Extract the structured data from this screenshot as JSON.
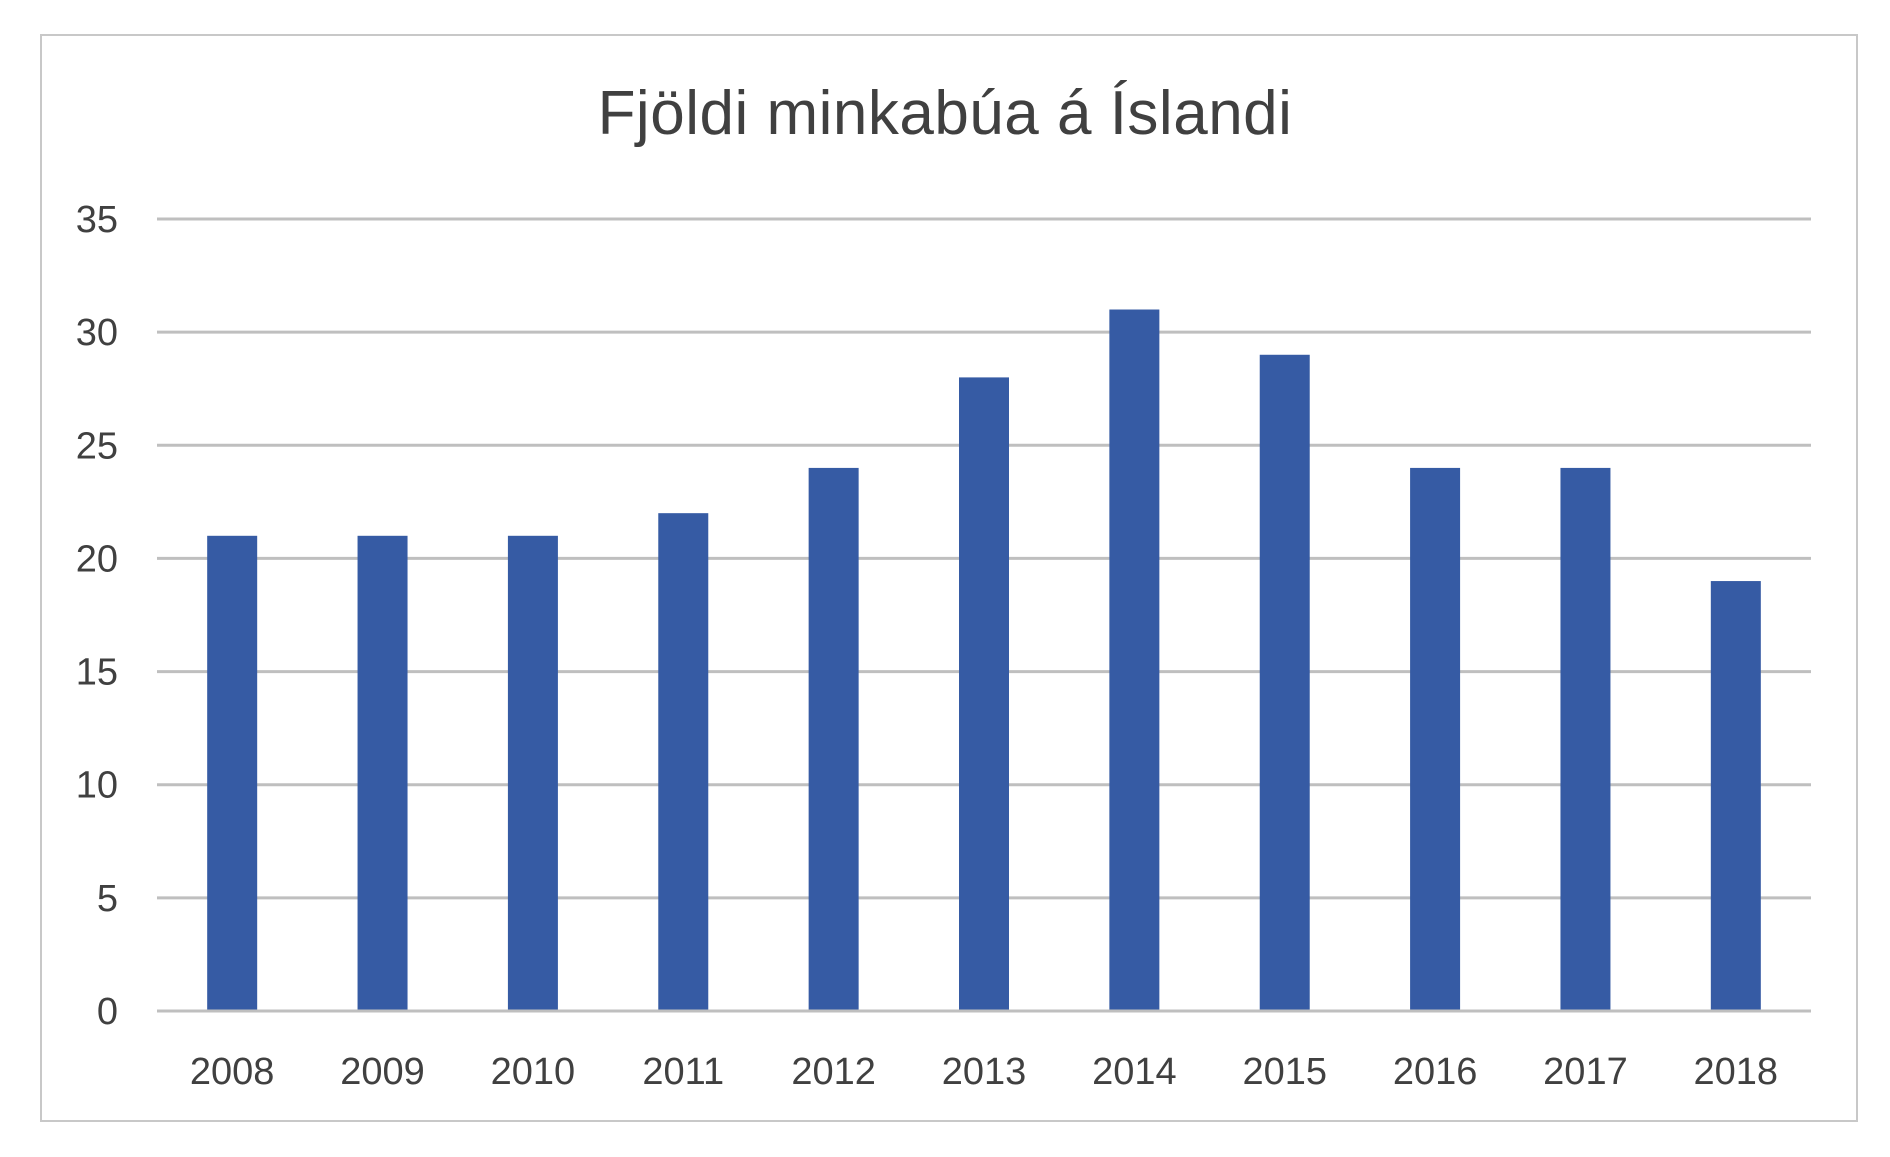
{
  "chart_data": {
    "type": "bar",
    "title": "Fjöldi minkabúa á Íslandi",
    "categories": [
      "2008",
      "2009",
      "2010",
      "2011",
      "2012",
      "2013",
      "2014",
      "2015",
      "2016",
      "2017",
      "2018"
    ],
    "values": [
      21,
      21,
      21,
      22,
      24,
      28,
      31,
      29,
      24,
      24,
      19
    ],
    "ylim": [
      0,
      35
    ],
    "yticks": [
      0,
      5,
      10,
      15,
      20,
      25,
      30,
      35
    ],
    "ytick_labels": [
      "0",
      "5",
      "10",
      "15",
      "20",
      "25",
      "30",
      "35"
    ],
    "grid": true,
    "legend": "none",
    "colors": {
      "bar": "#365ba4",
      "grid": "#bfbfbf",
      "text": "#404040"
    }
  }
}
